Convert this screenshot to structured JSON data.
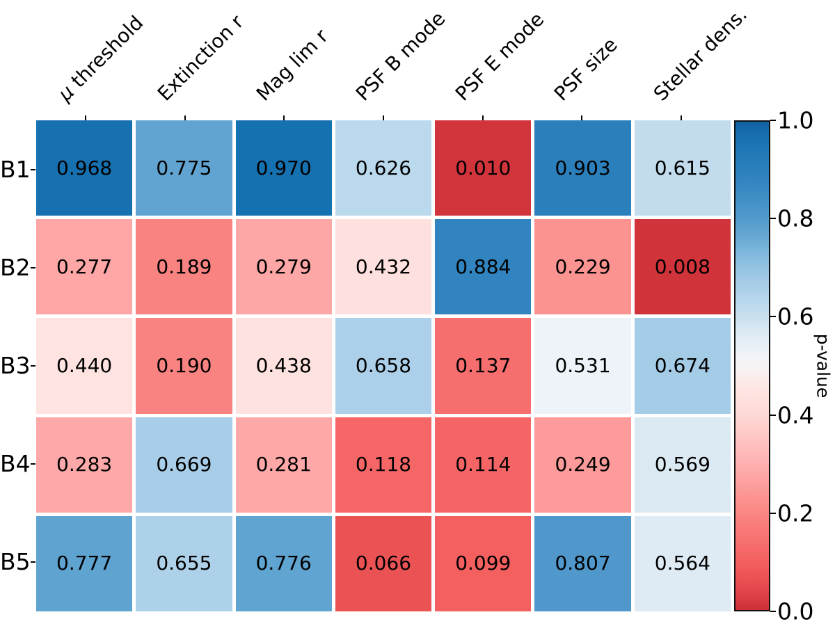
{
  "chart_data": {
    "type": "heatmap",
    "title": "",
    "rows": [
      "B1",
      "B2",
      "B3",
      "B4",
      "B5"
    ],
    "columns": [
      "μ threshold",
      "Extinction r",
      "Mag lim r",
      "PSF B mode",
      "PSF E mode",
      "PSF size",
      "Stellar dens."
    ],
    "values": [
      [
        "0.968",
        "0.775",
        "0.970",
        "0.626",
        "0.010",
        "0.903",
        "0.615"
      ],
      [
        "0.277",
        "0.189",
        "0.279",
        "0.432",
        "0.884",
        "0.229",
        "0.008"
      ],
      [
        "0.440",
        "0.190",
        "0.438",
        "0.658",
        "0.137",
        "0.531",
        "0.674"
      ],
      [
        "0.283",
        "0.669",
        "0.281",
        "0.118",
        "0.114",
        "0.249",
        "0.569"
      ],
      [
        "0.777",
        "0.655",
        "0.776",
        "0.066",
        "0.099",
        "0.807",
        "0.564"
      ]
    ],
    "value_range": [
      0,
      1
    ],
    "grid": false,
    "legend": "none",
    "colorbar": {
      "label": "p-value",
      "position": "right",
      "ticks": [
        "1.0",
        "0.8",
        "0.6",
        "0.4",
        "0.2",
        "0.0"
      ],
      "tick_values": [
        1.0,
        0.8,
        0.6,
        0.4,
        0.2,
        0.0
      ]
    },
    "colors": {
      "low_end_red": "#cb2e36",
      "midpoint_white": "#f7f4f4",
      "high_end_blue": "#10609f",
      "text": "#000000",
      "background": "#ffffff"
    },
    "colormap_stops": [
      [
        0.0,
        "#cb2e36"
      ],
      [
        0.04,
        "#e4474b"
      ],
      [
        0.1,
        "#f46060"
      ],
      [
        0.2,
        "#f98784"
      ],
      [
        0.3,
        "#ffb0b0"
      ],
      [
        0.4,
        "#fdd9d6"
      ],
      [
        0.45,
        "#fee5e2"
      ],
      [
        0.5,
        "#f7f4f4"
      ],
      [
        0.53,
        "#edf3f8"
      ],
      [
        0.57,
        "#dbe9f3"
      ],
      [
        0.63,
        "#b9d8ec"
      ],
      [
        0.67,
        "#a7cde8"
      ],
      [
        0.72,
        "#88bcdf"
      ],
      [
        0.78,
        "#5da2d0"
      ],
      [
        0.81,
        "#4e97ca"
      ],
      [
        0.88,
        "#3285c0"
      ],
      [
        0.97,
        "#1671b1"
      ],
      [
        1.0,
        "#10609f"
      ]
    ]
  }
}
